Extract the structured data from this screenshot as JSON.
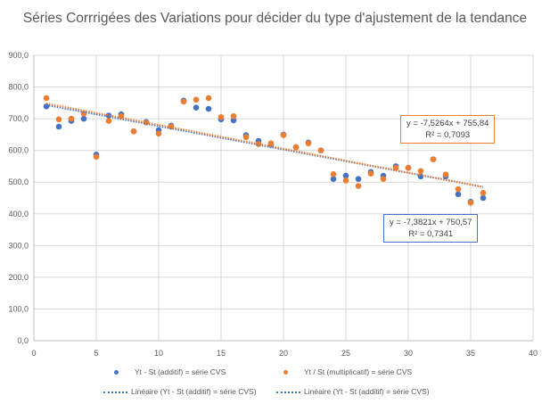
{
  "chart_data": {
    "type": "scatter",
    "title": "Séries Corrrigées des Variations pour décider du type d'ajustement de la tendance",
    "xlim": [
      0,
      40
    ],
    "ylim": [
      0,
      900
    ],
    "x_ticks": [
      "0",
      "5",
      "10",
      "15",
      "20",
      "25",
      "30",
      "35",
      "40"
    ],
    "y_ticks": [
      "0,0",
      "100,0",
      "200,0",
      "300,0",
      "400,0",
      "500,0",
      "600,0",
      "700,0",
      "800,0",
      "900,0"
    ],
    "grid": true,
    "legend_position": "bottom",
    "x": [
      1,
      2,
      3,
      4,
      5,
      6,
      7,
      8,
      9,
      10,
      11,
      12,
      13,
      14,
      15,
      16,
      17,
      18,
      19,
      20,
      21,
      22,
      23,
      24,
      25,
      26,
      27,
      28,
      29,
      30,
      31,
      32,
      33,
      34,
      35,
      36
    ],
    "series": [
      {
        "name": "Yt - St (additif) = série CVS",
        "color": "#4472C4",
        "values": [
          739,
          675,
          693,
          700,
          587,
          710,
          714,
          660,
          690,
          664,
          678,
          757,
          735,
          731,
          698,
          695,
          648,
          630,
          618,
          650,
          610,
          625,
          600,
          510,
          520,
          510,
          532,
          520,
          550,
          545,
          518,
          572,
          518,
          462,
          438,
          450
        ]
      },
      {
        "name": "Yt / St (multiplicatif) = série CVS",
        "color": "#ED7D31",
        "values": [
          765,
          698,
          700,
          716,
          580,
          693,
          708,
          660,
          688,
          653,
          675,
          754,
          760,
          765,
          705,
          708,
          642,
          620,
          622,
          648,
          610,
          622,
          600,
          525,
          505,
          488,
          527,
          510,
          545,
          545,
          535,
          572,
          524,
          478,
          435,
          466
        ]
      }
    ],
    "trendlines": [
      {
        "name": "Linéaire (Yt - St (additif) = série CVS)",
        "color": "#4472C4",
        "slope": -7.3821,
        "intercept": 750.57,
        "equation": "y = -7,3821x + 750,57",
        "r2": "R² = 0,7341"
      },
      {
        "name": "Linéaire (Yt - St (additif) = série CVS)",
        "color": "#ED7D31",
        "slope": -7.5264,
        "intercept": 755.84,
        "equation": "y = -7,5264x + 755,84",
        "r2": "R² = 0,7093"
      }
    ]
  }
}
